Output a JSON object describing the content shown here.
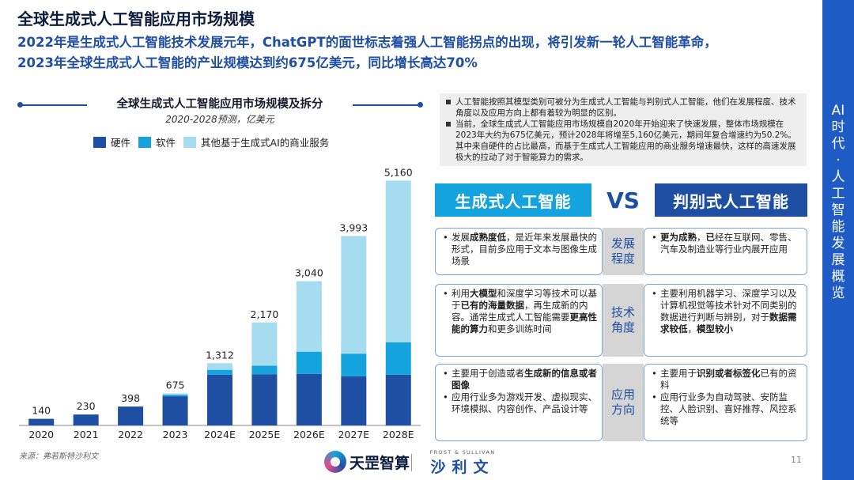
{
  "header": {
    "title": "全球生成式人工智能应用市场规模",
    "subtitle_line1": "2022年是生成式人工智能技术发展元年，ChatGPT的面世标志着强人工智能拐点的出现，将引发新一轮人工智能革命，",
    "subtitle_line2": "2023年全球生成式人工智能的产业规模达到约675亿美元，同比增长高达70%"
  },
  "side_label": [
    "AI",
    "时",
    "代",
    "·",
    "人",
    "工",
    "智",
    "能",
    "发",
    "展",
    "概",
    "览"
  ],
  "colors": {
    "hardware": "#1f4fa3",
    "software": "#14a3dc",
    "other": "#a6dcef",
    "accent": "#1f5bc4"
  },
  "chart_data": {
    "type": "bar",
    "stacked": true,
    "title": "全球生成式人工智能应用市场规模及拆分",
    "subtitle": "2020-2028预测，亿美元",
    "categories": [
      "2020",
      "2021",
      "2022",
      "2023",
      "2024E",
      "2025E",
      "2026E",
      "2027E",
      "2028E"
    ],
    "totals": [
      140,
      230,
      398,
      675,
      1312,
      2170,
      3040,
      3993,
      5160
    ],
    "total_labels": [
      "140",
      "230",
      "398",
      "675",
      "1,312",
      "2,170",
      "3,040",
      "3,993",
      "5,160"
    ],
    "series": [
      {
        "name": "硬件",
        "values": [
          140,
          230,
          398,
          615,
          1070,
          1080,
          1085,
          1035,
          1070
        ]
      },
      {
        "name": "软件",
        "values": [
          0,
          0,
          0,
          30,
          102,
          180,
          470,
          478,
          680
        ]
      },
      {
        "name": "其他基于生成式AI的商业服务",
        "values": [
          0,
          0,
          0,
          30,
          140,
          910,
          1485,
          2480,
          3410
        ]
      }
    ],
    "ylim": [
      0,
      5600
    ],
    "grid": false,
    "legend": "top-left"
  },
  "source": "来源：弗若斯特沙利文",
  "notes": [
    "人工智能按照其模型类别可被分为生成式人工智能与判别式人工智能，他们在发展程度、技术角度以及应用方向上都有着较为明显的区别。",
    "当前，全球生成式人工智能应用市场规模自2020年开始迎来了快速发展，整体市场规模在2023年大约为675亿美元，预计2028年将增至5,160亿美元，期间年复合增速约为50.2%。其中来自硬件的占比最高，而基于生成式人工智能应用的商业服务增速最快，这样的高速发展极大的拉动了对于智能算力的需求。"
  ],
  "comparison": {
    "left_header": "生成式人工智能",
    "vs": "VS",
    "right_header": "判别式人工智能",
    "rows": [
      {
        "dimension": [
          "发展",
          "程度"
        ],
        "left": [
          "发展成熟度低，是近年来发展最快的形式，目前多应用于文本与图像生成场景"
        ],
        "right": [
          "更为成熟，已经在互联网、零售、汽车及制造业等行业内展开应用"
        ]
      },
      {
        "dimension": [
          "技术",
          "角度"
        ],
        "left": [
          "利用大模型和深度学习等技术可以基于已有的海量数据，再生成新的内容。通常生成式人工智能需要更高性能的算力和更多训练时间"
        ],
        "right": [
          "主要利用机器学习、深度学习以及计算机视觉等技术针对不同类别的数据进行判断与辨别，对于数据需求较低，模型较小"
        ]
      },
      {
        "dimension": [
          "应用",
          "方向"
        ],
        "left": [
          "主要用于创造或者生成新的信息或者图像",
          "应用行业多为游戏开发、虚拟现实、环境模拟、内容创作、产品设计等"
        ],
        "right": [
          "主要用于识别或者标签化已有的资料",
          "应用行业多为自动驾驶、安防监控、人脸识别、喜好推荐、风控系统等"
        ]
      }
    ]
  },
  "footer": {
    "logo1_text": "天罡智算",
    "logo2_top": "FROST & SULLIVAN",
    "logo2_text": "沙利文",
    "page_number": "11"
  }
}
